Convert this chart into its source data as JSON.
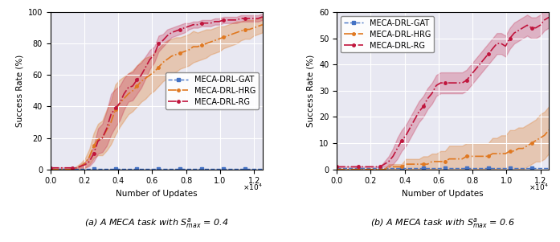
{
  "fig_width": 6.97,
  "fig_height": 3.01,
  "dpi": 100,
  "plot_bg_color": "#e8e8f2",
  "x_max": 12500,
  "x_ticks": [
    0,
    2000,
    4000,
    6000,
    8000,
    10000,
    12000
  ],
  "x_tick_labels": [
    "0.0",
    "0.2",
    "0.4",
    "0.6",
    "0.8",
    "1.0",
    "1.2"
  ],
  "xlabel": "Number of Updates",
  "ylabel": "Success Rate (%)",
  "subplot1": {
    "ylim": [
      0,
      100
    ],
    "yticks": [
      0,
      20,
      40,
      60,
      80,
      100
    ],
    "caption": "(a) A MECA task with $S^{a}_{max}$ = 0.4",
    "gat_color": "#4472c4",
    "hrg_color": "#e07820",
    "rg_color": "#c0143c",
    "gat_y": 0.5,
    "hrg_mean": [
      0,
      0,
      0,
      0,
      0,
      0,
      1,
      2,
      4,
      8,
      15,
      19,
      20,
      25,
      30,
      38,
      42,
      45,
      48,
      50,
      53,
      56,
      58,
      60,
      62,
      65,
      68,
      70,
      72,
      73,
      74,
      75,
      76,
      78,
      78,
      79,
      80,
      81,
      82,
      83,
      84,
      85,
      86,
      87,
      88,
      89,
      89,
      90,
      91,
      92
    ],
    "hrg_std": [
      0,
      0,
      0,
      0,
      0,
      0,
      1,
      2,
      3,
      5,
      8,
      10,
      11,
      13,
      14,
      16,
      15,
      14,
      13,
      13,
      13,
      13,
      13,
      12,
      12,
      12,
      12,
      12,
      11,
      11,
      10,
      10,
      10,
      10,
      9,
      9,
      9,
      8,
      8,
      8,
      7,
      7,
      7,
      7,
      6,
      6,
      6,
      5,
      5,
      5
    ],
    "rg_mean": [
      1,
      1,
      1,
      1,
      1,
      1,
      1,
      2,
      3,
      5,
      10,
      18,
      20,
      26,
      35,
      39,
      42,
      48,
      52,
      53,
      57,
      60,
      65,
      70,
      73,
      80,
      82,
      85,
      87,
      88,
      89,
      90,
      91,
      92,
      92,
      93,
      93,
      93,
      94,
      94,
      95,
      95,
      95,
      95,
      96,
      96,
      96,
      96,
      96,
      97
    ],
    "rg_std": [
      0,
      0,
      0,
      0,
      0,
      0,
      0,
      1,
      2,
      3,
      5,
      8,
      9,
      11,
      13,
      12,
      11,
      10,
      9,
      9,
      9,
      8,
      7,
      6,
      5,
      5,
      4,
      4,
      3,
      3,
      3,
      3,
      2,
      2,
      2,
      2,
      2,
      2,
      2,
      2,
      2,
      2,
      2,
      2,
      2,
      2,
      2,
      2,
      2,
      2
    ],
    "legend_loc": "center right"
  },
  "subplot2": {
    "ylim": [
      0,
      60
    ],
    "yticks": [
      0,
      10,
      20,
      30,
      40,
      50,
      60
    ],
    "caption": "(b) A MECA task with $S^{a}_{max}$ = 0.6",
    "gat_color": "#4472c4",
    "hrg_color": "#e07820",
    "rg_color": "#c0143c",
    "gat_y": 0.5,
    "hrg_mean": [
      0,
      0,
      0,
      0,
      0,
      0,
      0,
      0,
      0,
      0,
      0,
      0,
      1,
      1,
      1,
      1,
      2,
      2,
      2,
      2,
      2,
      2,
      3,
      3,
      3,
      3,
      4,
      4,
      4,
      4,
      5,
      5,
      5,
      5,
      5,
      5,
      6,
      6,
      6,
      6,
      7,
      7,
      8,
      8,
      9,
      10,
      11,
      12,
      13,
      15
    ],
    "hrg_std": [
      0,
      0,
      0,
      0,
      0,
      0,
      0,
      0,
      0,
      0,
      0,
      0,
      1,
      1,
      1,
      1,
      2,
      2,
      2,
      2,
      3,
      3,
      3,
      3,
      4,
      4,
      5,
      5,
      5,
      5,
      5,
      5,
      5,
      5,
      5,
      5,
      6,
      6,
      7,
      7,
      8,
      8,
      8,
      8,
      8,
      8,
      8,
      9,
      9,
      9
    ],
    "rg_mean": [
      1,
      1,
      1,
      1,
      1,
      1,
      1,
      1,
      1,
      1,
      1,
      2,
      3,
      5,
      8,
      11,
      13,
      16,
      19,
      22,
      24,
      27,
      29,
      32,
      33,
      33,
      33,
      33,
      33,
      33,
      34,
      36,
      38,
      40,
      42,
      44,
      46,
      48,
      48,
      47,
      50,
      52,
      53,
      54,
      55,
      54,
      54,
      55,
      57,
      58
    ],
    "rg_std": [
      0,
      0,
      0,
      0,
      0,
      0,
      0,
      0,
      0,
      0,
      0,
      1,
      2,
      3,
      4,
      4,
      4,
      4,
      4,
      4,
      4,
      4,
      4,
      4,
      4,
      4,
      4,
      4,
      4,
      4,
      4,
      4,
      4,
      4,
      4,
      4,
      4,
      4,
      4,
      4,
      4,
      4,
      4,
      4,
      4,
      4,
      4,
      4,
      4,
      4
    ],
    "legend_loc": "upper left"
  },
  "legend_labels": [
    "MECA-DRL-GAT",
    "MECA-DRL-HRG",
    "MECA-DRL-RG"
  ],
  "legend_colors": [
    "#4472c4",
    "#e07820",
    "#c0143c"
  ]
}
